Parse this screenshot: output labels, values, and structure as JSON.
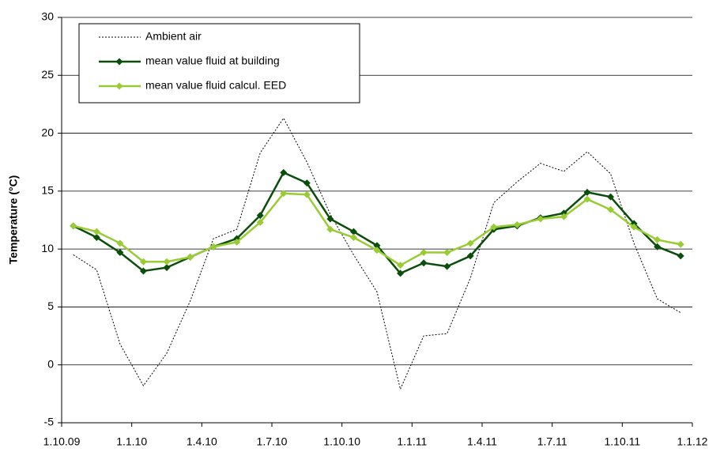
{
  "chart_data": {
    "type": "line",
    "ylabel": "Temperature (°C)",
    "xlim": [
      0,
      27
    ],
    "xticks": [
      {
        "value": 0,
        "label": "1.10.09"
      },
      {
        "value": 3,
        "label": "1.1.10"
      },
      {
        "value": 6,
        "label": "1.4.10"
      },
      {
        "value": 9,
        "label": "1.7.10"
      },
      {
        "value": 12,
        "label": "1.10.10"
      },
      {
        "value": 15,
        "label": "1.1.11"
      },
      {
        "value": 18,
        "label": "1.4.11"
      },
      {
        "value": 21,
        "label": "1.7.11"
      },
      {
        "value": 24,
        "label": "1.10.11"
      },
      {
        "value": 27,
        "label": "1.1.12"
      }
    ],
    "ylim": [
      -5,
      30
    ],
    "yticks": [
      -5,
      0,
      5,
      10,
      15,
      20,
      25,
      30
    ],
    "grid": true,
    "legend": "upper left",
    "x": [
      0.5,
      1.5,
      2.5,
      3.5,
      4.5,
      5.5,
      6.5,
      7.5,
      8.5,
      9.5,
      10.5,
      11.5,
      12.5,
      13.5,
      14.5,
      15.5,
      16.5,
      17.5,
      18.5,
      19.5,
      20.5,
      21.5,
      22.5,
      23.5,
      24.5,
      25.5,
      26.5
    ],
    "series": [
      {
        "name": "Ambient air",
        "color": "#000000",
        "style": "dotted",
        "values": [
          9.5,
          8.2,
          1.8,
          -1.8,
          1.0,
          5.5,
          10.9,
          11.7,
          18.3,
          21.3,
          17.5,
          13.0,
          9.5,
          6.3,
          -2.1,
          2.5,
          2.7,
          7.5,
          14.0,
          15.8,
          17.4,
          16.7,
          18.4,
          16.5,
          10.5,
          5.7,
          4.5
        ]
      },
      {
        "name": "mean value fluid at building",
        "color": "#0b4d0b",
        "style": "solid-diamond",
        "values": [
          12.0,
          11.0,
          9.7,
          8.1,
          8.4,
          9.3,
          10.2,
          10.9,
          12.9,
          16.6,
          15.7,
          12.6,
          11.5,
          10.3,
          7.9,
          8.8,
          8.5,
          9.4,
          11.7,
          12.0,
          12.7,
          13.1,
          14.9,
          14.5,
          12.2,
          10.2,
          9.4
        ]
      },
      {
        "name": "mean value fluid calcul. EED",
        "color": "#99cc33",
        "style": "solid-diamond",
        "values": [
          12.0,
          11.5,
          10.5,
          8.9,
          8.9,
          9.3,
          10.2,
          10.6,
          12.3,
          14.8,
          14.7,
          11.7,
          11.0,
          9.9,
          8.6,
          9.7,
          9.7,
          10.5,
          11.9,
          12.1,
          12.6,
          12.8,
          14.3,
          13.4,
          11.9,
          10.8,
          10.4
        ]
      }
    ]
  }
}
